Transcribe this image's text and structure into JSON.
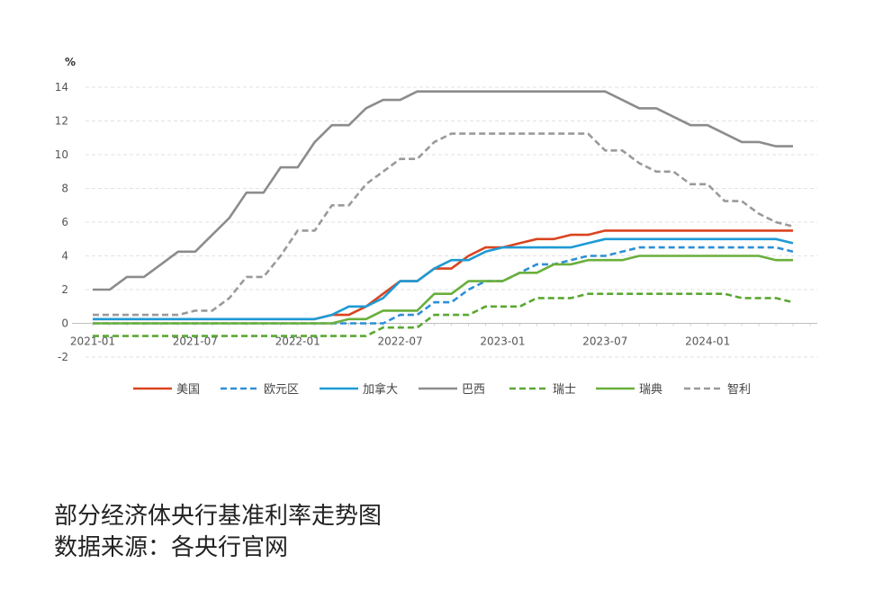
{
  "caption": {
    "line1": "部分经济体央行基准利率走势图",
    "line2": "数据来源：各央行官网"
  },
  "chart_data": {
    "type": "line",
    "y_unit_label": "%",
    "ylim": [
      -2,
      14
    ],
    "yticks": [
      -2,
      0,
      2,
      4,
      6,
      8,
      10,
      12,
      14
    ],
    "xticks": [
      "2021-01",
      "2021-07",
      "2022-01",
      "2022-07",
      "2023-01",
      "2023-07",
      "2024-01"
    ],
    "x_start": "2021-01",
    "x_end": "2024-07",
    "grid": "horizontal-dashed",
    "legend_position": "bottom",
    "series": [
      {
        "name": "美国",
        "color": "#d9441e",
        "dash": "solid",
        "x": [
          "2021-01",
          "2022-02",
          "2022-03",
          "2022-04",
          "2022-05",
          "2022-06",
          "2022-07",
          "2022-08",
          "2022-09",
          "2022-10",
          "2022-11",
          "2022-12",
          "2023-01",
          "2023-02",
          "2023-03",
          "2023-04",
          "2023-05",
          "2023-06",
          "2023-07",
          "2024-06"
        ],
        "values": [
          0.25,
          0.25,
          0.5,
          0.5,
          1.0,
          1.75,
          2.5,
          2.5,
          3.25,
          3.25,
          4.0,
          4.5,
          4.5,
          4.75,
          5.0,
          5.0,
          5.25,
          5.25,
          5.5,
          5.5
        ]
      },
      {
        "name": "欧元区",
        "color": "#2e8fd6",
        "dash": "dashed",
        "x": [
          "2021-01",
          "2022-06",
          "2022-07",
          "2022-08",
          "2022-09",
          "2022-10",
          "2022-11",
          "2022-12",
          "2023-01",
          "2023-02",
          "2023-03",
          "2023-04",
          "2023-05",
          "2023-06",
          "2023-07",
          "2023-08",
          "2023-09",
          "2024-05",
          "2024-06"
        ],
        "values": [
          0.0,
          0.0,
          0.5,
          0.5,
          1.25,
          1.25,
          2.0,
          2.5,
          2.5,
          3.0,
          3.5,
          3.5,
          3.75,
          4.0,
          4.0,
          4.25,
          4.5,
          4.5,
          4.25
        ]
      },
      {
        "name": "加拿大",
        "color": "#1e9ad6",
        "dash": "solid",
        "x": [
          "2021-01",
          "2022-02",
          "2022-03",
          "2022-04",
          "2022-05",
          "2022-06",
          "2022-07",
          "2022-08",
          "2022-09",
          "2022-10",
          "2022-11",
          "2022-12",
          "2023-01",
          "2023-02",
          "2023-03",
          "2023-04",
          "2023-05",
          "2023-06",
          "2023-07",
          "2024-05",
          "2024-06"
        ],
        "values": [
          0.25,
          0.25,
          0.5,
          1.0,
          1.0,
          1.5,
          2.5,
          2.5,
          3.25,
          3.75,
          3.75,
          4.25,
          4.5,
          4.5,
          4.5,
          4.5,
          4.5,
          4.75,
          5.0,
          5.0,
          4.75
        ]
      },
      {
        "name": "巴西",
        "color": "#8c8c8c",
        "dash": "solid",
        "x": [
          "2021-01",
          "2021-02",
          "2021-03",
          "2021-04",
          "2021-05",
          "2021-06",
          "2021-07",
          "2021-08",
          "2021-09",
          "2021-10",
          "2021-11",
          "2021-12",
          "2022-01",
          "2022-02",
          "2022-03",
          "2022-04",
          "2022-05",
          "2022-06",
          "2022-07",
          "2022-08",
          "2023-07",
          "2023-08",
          "2023-09",
          "2023-10",
          "2023-11",
          "2023-12",
          "2024-01",
          "2024-02",
          "2024-03",
          "2024-04",
          "2024-05",
          "2024-06"
        ],
        "values": [
          2.0,
          2.0,
          2.75,
          2.75,
          3.5,
          4.25,
          4.25,
          5.25,
          6.25,
          7.75,
          7.75,
          9.25,
          9.25,
          10.75,
          11.75,
          11.75,
          12.75,
          13.25,
          13.25,
          13.75,
          13.75,
          13.25,
          12.75,
          12.75,
          12.25,
          11.75,
          11.75,
          11.25,
          10.75,
          10.75,
          10.5,
          10.5
        ]
      },
      {
        "name": "瑞士",
        "color": "#5aa832",
        "dash": "dashed",
        "x": [
          "2021-01",
          "2022-05",
          "2022-06",
          "2022-07",
          "2022-08",
          "2022-09",
          "2022-10",
          "2022-11",
          "2022-12",
          "2023-01",
          "2023-02",
          "2023-03",
          "2023-04",
          "2023-05",
          "2023-06",
          "2024-02",
          "2024-03",
          "2024-04",
          "2024-05",
          "2024-06"
        ],
        "values": [
          -0.75,
          -0.75,
          -0.25,
          -0.25,
          -0.25,
          0.5,
          0.5,
          0.5,
          1.0,
          1.0,
          1.0,
          1.5,
          1.5,
          1.5,
          1.75,
          1.75,
          1.5,
          1.5,
          1.5,
          1.25
        ]
      },
      {
        "name": "瑞典",
        "color": "#6aaf3c",
        "dash": "solid",
        "x": [
          "2021-01",
          "2022-03",
          "2022-04",
          "2022-05",
          "2022-06",
          "2022-07",
          "2022-08",
          "2022-09",
          "2022-10",
          "2022-11",
          "2022-12",
          "2023-01",
          "2023-02",
          "2023-03",
          "2023-04",
          "2023-05",
          "2023-06",
          "2023-07",
          "2023-08",
          "2023-09",
          "2024-04",
          "2024-05",
          "2024-06"
        ],
        "values": [
          0.0,
          0.0,
          0.25,
          0.25,
          0.75,
          0.75,
          0.75,
          1.75,
          1.75,
          2.5,
          2.5,
          2.5,
          3.0,
          3.0,
          3.5,
          3.5,
          3.75,
          3.75,
          3.75,
          4.0,
          4.0,
          3.75,
          3.75
        ]
      },
      {
        "name": "智利",
        "color": "#9a9a9a",
        "dash": "dashed",
        "x": [
          "2021-01",
          "2021-06",
          "2021-07",
          "2021-08",
          "2021-09",
          "2021-10",
          "2021-11",
          "2021-12",
          "2022-01",
          "2022-02",
          "2022-03",
          "2022-04",
          "2022-05",
          "2022-06",
          "2022-07",
          "2022-08",
          "2022-09",
          "2022-10",
          "2023-05",
          "2023-06",
          "2023-07",
          "2023-08",
          "2023-09",
          "2023-10",
          "2023-11",
          "2023-12",
          "2024-01",
          "2024-02",
          "2024-03",
          "2024-04",
          "2024-05",
          "2024-06"
        ],
        "values": [
          0.5,
          0.5,
          0.75,
          0.75,
          1.5,
          2.75,
          2.75,
          4.0,
          5.5,
          5.5,
          7.0,
          7.0,
          8.25,
          9.0,
          9.75,
          9.75,
          10.75,
          11.25,
          11.25,
          11.25,
          10.25,
          10.25,
          9.5,
          9.0,
          9.0,
          8.25,
          8.25,
          7.25,
          7.25,
          6.5,
          6.0,
          5.75
        ]
      }
    ]
  }
}
